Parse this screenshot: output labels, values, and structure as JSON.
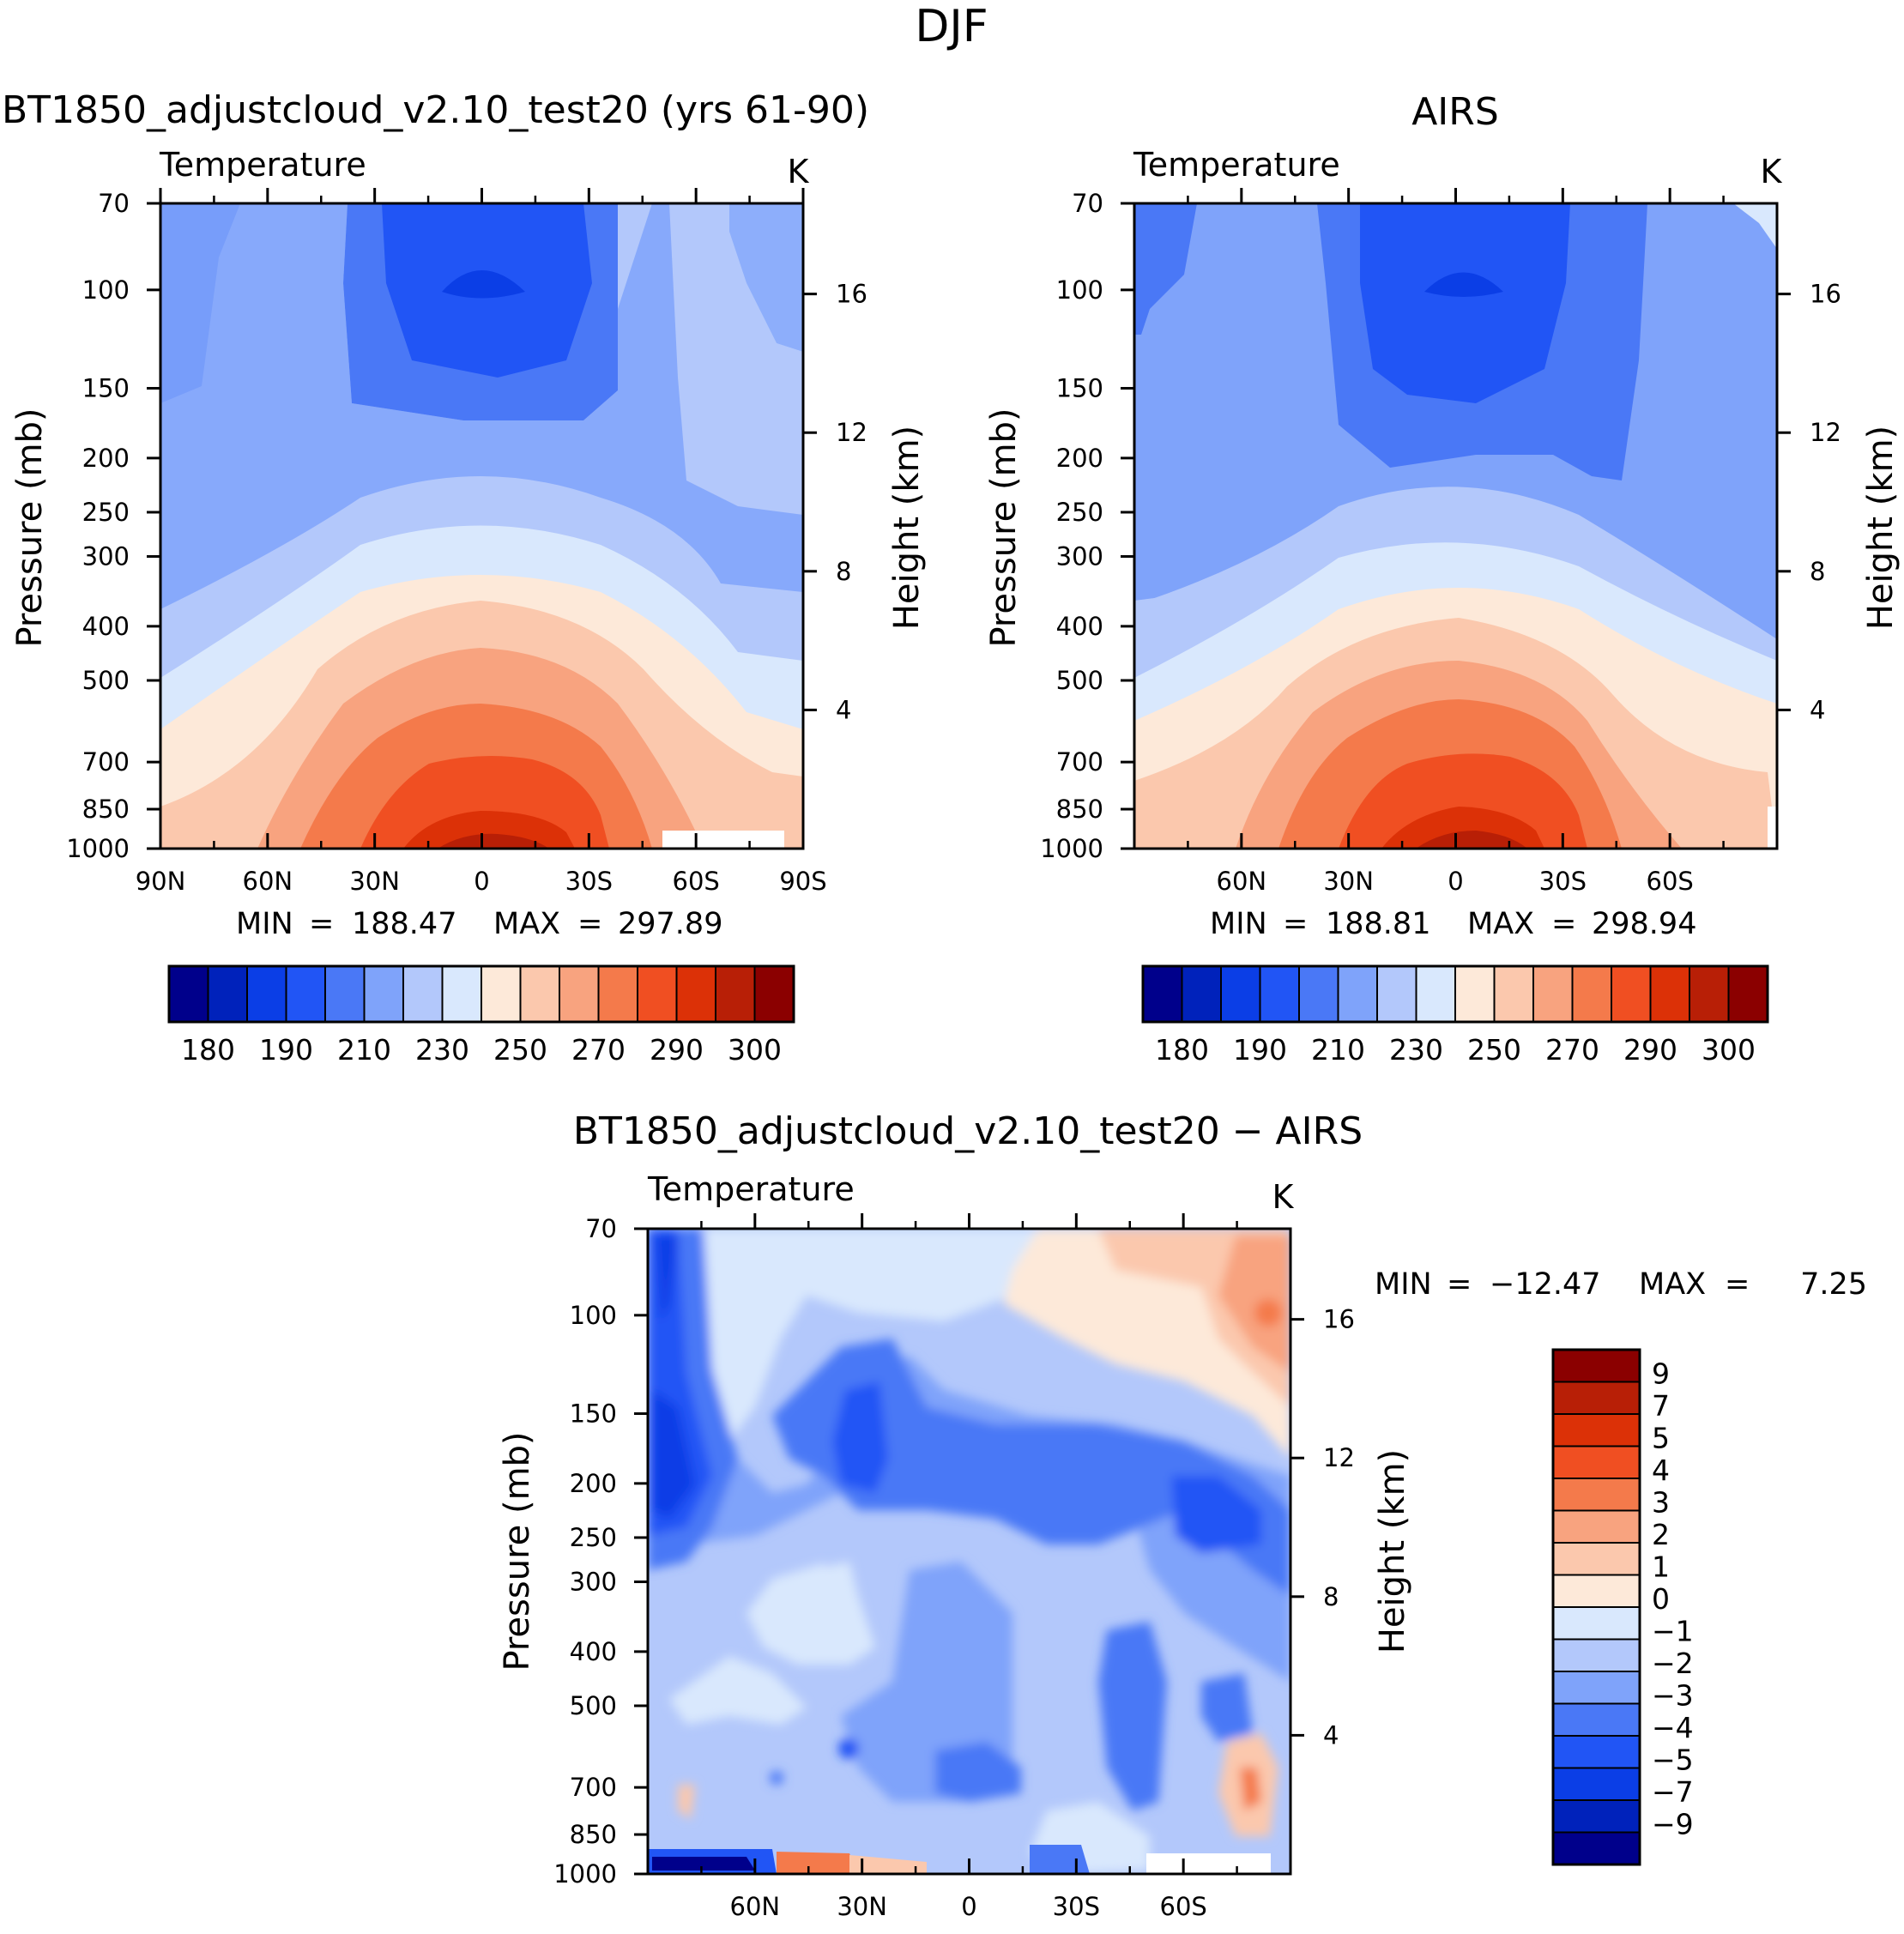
{
  "figure": {
    "season": "DJF"
  },
  "palettes": {
    "abs": [
      "#00008b",
      "#0022bb",
      "#0b3ee6",
      "#2155f5",
      "#4a78f6",
      "#7fa3fa",
      "#b3c8fb",
      "#d9e8fd",
      "#fde9d9",
      "#fbc8ad",
      "#f8a37f",
      "#f47a4b",
      "#f04f22",
      "#dc3107",
      "#b81f06",
      "#8b0000"
    ],
    "diff": [
      "#00008b",
      "#0022bb",
      "#0b3ee6",
      "#2155f5",
      "#4a78f6",
      "#7fa3fa",
      "#b3c8fb",
      "#d9e8fd",
      "#fde9d9",
      "#fbc8ad",
      "#f8a37f",
      "#f47a4b",
      "#f04f22",
      "#dc3107",
      "#b81f06",
      "#8b0000"
    ]
  },
  "panels": {
    "model": {
      "title": "BT1850_adjustcloud_v2.10_test20 (yrs 61-90)",
      "left_label": "Temperature",
      "right_label": "K",
      "y_label": "Pressure (mb)",
      "y2_label": "Height (km)",
      "stats": {
        "min_label": "MIN",
        "min_value": "188.47",
        "max_label": "MAX",
        "max_value": "297.89",
        "eq": "="
      },
      "colorbar_labels": [
        "180",
        "190",
        "210",
        "230",
        "250",
        "270",
        "290",
        "300"
      ]
    },
    "obs": {
      "title": "AIRS",
      "left_label": "Temperature",
      "right_label": "K",
      "y_label": "Pressure (mb)",
      "y2_label": "Height (km)",
      "stats": {
        "min_label": "MIN",
        "min_value": "188.81",
        "max_label": "MAX",
        "max_value": "298.94",
        "eq": "="
      },
      "colorbar_labels": [
        "180",
        "190",
        "210",
        "230",
        "250",
        "270",
        "290",
        "300"
      ]
    },
    "diff": {
      "title": "BT1850_adjustcloud_v2.10_test20 − AIRS",
      "left_label": "Temperature",
      "right_label": "K",
      "y_label": "Pressure (mb)",
      "y2_label": "Height (km)",
      "stats": {
        "min_label": "MIN",
        "min_value": "−12.47",
        "max_label": "MAX",
        "max_value": "7.25",
        "eq": "="
      },
      "colorbar_labels": [
        "9",
        "7",
        "5",
        "4",
        "3",
        "2",
        "1",
        "0",
        "−1",
        "−2",
        "−3",
        "−4",
        "−5",
        "−7",
        "−9"
      ]
    }
  },
  "chart_data": [
    {
      "id": "model",
      "type": "heatmap",
      "title": "BT1850_adjustcloud_v2.10_test20 (yrs 61-90)",
      "xlabel": "",
      "ylabel": "Pressure (mb)",
      "y2label": "Height (km)",
      "x_ticks": [
        "90N",
        "60N",
        "30N",
        "0",
        "30S",
        "60S",
        "90S"
      ],
      "x_tick_values": [
        90,
        60,
        30,
        0,
        -30,
        -60,
        -90
      ],
      "xlim": [
        90,
        -90
      ],
      "y_ticks": [
        70,
        100,
        150,
        200,
        250,
        300,
        400,
        500,
        700,
        850,
        1000
      ],
      "ylim": [
        1000,
        70
      ],
      "y_scale": "log",
      "y2_ticks": [
        4,
        8,
        12,
        16
      ],
      "contour_levels": [
        180,
        185,
        190,
        200,
        210,
        220,
        230,
        240,
        250,
        260,
        270,
        280,
        290,
        295,
        300
      ],
      "field": "Temperature",
      "units": "K",
      "min": 188.47,
      "max": 297.89
    },
    {
      "id": "obs",
      "type": "heatmap",
      "title": "AIRS",
      "xlabel": "",
      "ylabel": "Pressure (mb)",
      "y2label": "Height (km)",
      "x_ticks": [
        "60N",
        "30N",
        "0",
        "30S",
        "60S"
      ],
      "x_tick_values": [
        60,
        30,
        0,
        -30,
        -60
      ],
      "xlim": [
        90,
        -90
      ],
      "y_ticks": [
        70,
        100,
        150,
        200,
        250,
        300,
        400,
        500,
        700,
        850,
        1000
      ],
      "ylim": [
        1000,
        70
      ],
      "y_scale": "log",
      "y2_ticks": [
        4,
        8,
        12,
        16
      ],
      "contour_levels": [
        180,
        185,
        190,
        200,
        210,
        220,
        230,
        240,
        250,
        260,
        270,
        280,
        290,
        295,
        300
      ],
      "field": "Temperature",
      "units": "K",
      "min": 188.81,
      "max": 298.94
    },
    {
      "id": "diff",
      "type": "heatmap",
      "title": "BT1850_adjustcloud_v2.10_test20 − AIRS",
      "xlabel": "",
      "ylabel": "Pressure (mb)",
      "y2label": "Height (km)",
      "x_ticks": [
        "60N",
        "30N",
        "0",
        "30S",
        "60S"
      ],
      "x_tick_values": [
        60,
        30,
        0,
        -30,
        -60
      ],
      "xlim": [
        90,
        -90
      ],
      "y_ticks": [
        70,
        100,
        150,
        200,
        250,
        300,
        400,
        500,
        700,
        850,
        1000
      ],
      "ylim": [
        1000,
        70
      ],
      "y_scale": "log",
      "y2_ticks": [
        4,
        8,
        12,
        16
      ],
      "contour_levels": [
        -9,
        -7,
        -5,
        -4,
        -3,
        -2,
        -1,
        0,
        1,
        2,
        3,
        4,
        5,
        7,
        9
      ],
      "field": "Temperature difference",
      "units": "K",
      "min": -12.47,
      "max": 7.25
    }
  ]
}
